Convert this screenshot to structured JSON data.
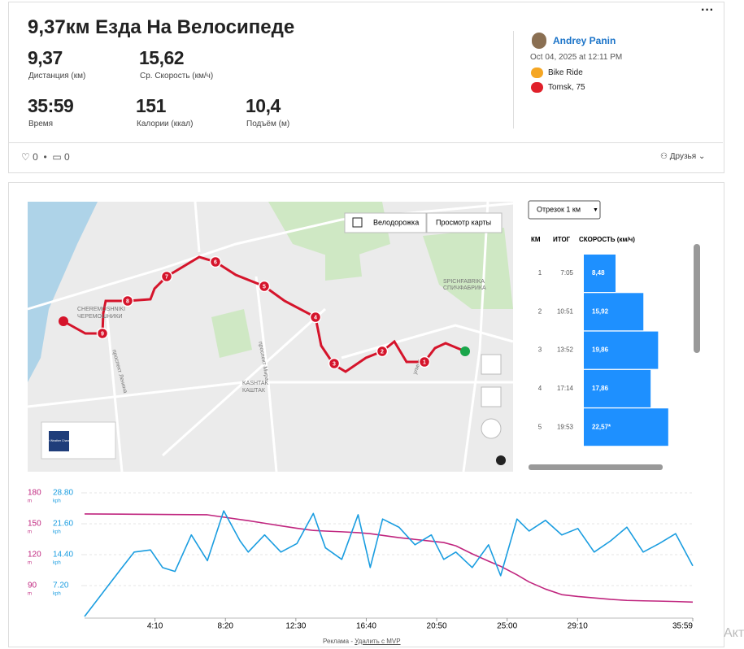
{
  "header": {
    "title": "9,37км Езда На Велосипеде",
    "stats": [
      {
        "value": "9,37",
        "label": "Дистанция (км)"
      },
      {
        "value": "15,62",
        "label": "Ср. Скорость (км/ч)"
      },
      {
        "value": "35:59",
        "label": "Время"
      },
      {
        "value": "151",
        "label": "Калории (ккал)"
      },
      {
        "value": "10,4",
        "label": "Подъём (м)"
      }
    ]
  },
  "athlete": {
    "name": "Andrey Panin",
    "date": "Oct 04, 2025 at 12:11 PM",
    "activity": "Bike Ride",
    "location": "Tomsk, 75"
  },
  "social": {
    "likes": "0",
    "comments": "0",
    "privacy": "Друзья"
  },
  "map": {
    "buttons": [
      "Велодорожка",
      "Просмотр карты"
    ],
    "labels": [
      "CHEREMOSHNIKI",
      "ЧЕРЕМОШНИКИ",
      "проспект Ленина",
      "проспект Мира",
      "KASHTAK",
      "КАШТАК",
      "SPICHFABRIKA",
      "СПИЧФАБРИКА",
      "улица"
    ],
    "km_markers": [
      "1",
      "2",
      "3",
      "4",
      "5",
      "6",
      "7",
      "8",
      "9"
    ],
    "weather": "The Weather Channel"
  },
  "splits": {
    "selector": "Отрезок 1 км",
    "columns": [
      "КМ",
      "ИТОГ",
      "СКОРОСТЬ (км/ч)"
    ],
    "km": [
      1,
      2,
      3,
      4,
      5
    ],
    "total": [
      "7:05",
      "10:51",
      "13:52",
      "17:14",
      "19:53"
    ],
    "speed": [
      8.48,
      15.92,
      19.86,
      17.86,
      22.57
    ],
    "speed_labels": [
      "8,48",
      "15,92",
      "19,86",
      "17,86",
      "22,57*"
    ]
  },
  "chart_data": {
    "type": "line",
    "x": [
      0,
      133,
      176,
      234,
      277,
      321,
      379,
      436,
      494,
      552,
      581,
      639,
      697,
      754,
      812,
      855,
      913,
      971,
      1014,
      1058,
      1116,
      1173,
      1231,
      1275,
      1318,
      1376,
      1434,
      1477,
      1535,
      1578,
      1636,
      1694,
      1751,
      1809,
      1867,
      1925,
      1983,
      2040,
      2098,
      2159
    ],
    "xlim": [
      0,
      2159
    ],
    "xticks": [
      {
        "value": 250,
        "label": "4:10"
      },
      {
        "value": 500,
        "label": "8:20"
      },
      {
        "value": 750,
        "label": "12:30"
      },
      {
        "value": 1000,
        "label": "16:40"
      },
      {
        "value": 1250,
        "label": "20:50"
      },
      {
        "value": 1500,
        "label": "25:00"
      },
      {
        "value": 1750,
        "label": "29:10"
      },
      {
        "value": 2159,
        "label": "35:59"
      }
    ],
    "ylim": [
      60,
      180
    ],
    "yticks": [
      90,
      120,
      150,
      180
    ],
    "y_unit": "m",
    "y2lim": [
      0,
      28.8
    ],
    "y2ticks": [
      {
        "value": 7.2,
        "label": "7.20"
      },
      {
        "value": 14.4,
        "label": "14.40"
      },
      {
        "value": 21.6,
        "label": "21.60"
      },
      {
        "value": 28.8,
        "label": "28.80"
      }
    ],
    "y2_unit": "kph",
    "grid": true,
    "series": [
      {
        "color": "#c0267f",
        "values": [
          159.5,
          159.3,
          159.2,
          159.1,
          159,
          158.9,
          158.8,
          158.7,
          156.4,
          154.1,
          153,
          150.5,
          148,
          145.6,
          143.5,
          142.9,
          142.2,
          141.4,
          140.4,
          138.7,
          136.5,
          134.8,
          133.1,
          131.8,
          128.6,
          120.8,
          113.7,
          108.7,
          100.4,
          93.5,
          86.6,
          81.2,
          79.4,
          78,
          76.6,
          75.6,
          75.2,
          74.9,
          74.5,
          74
        ]
      },
      {
        "color": "#1a9de0",
        "axis": "y2",
        "values": [
          0,
          11.4,
          15,
          15.5,
          11.4,
          10.5,
          19,
          13,
          24.6,
          17.6,
          15,
          19,
          15,
          17,
          24,
          16,
          13.3,
          23.7,
          11.4,
          22.7,
          20.8,
          16.7,
          19,
          13.3,
          15,
          11.4,
          16.7,
          9.5,
          22.7,
          19.9,
          22.4,
          19,
          20.5,
          15,
          17.6,
          20.8,
          15,
          17,
          19.3,
          11.8
        ]
      }
    ]
  },
  "footer": {
    "ad": "Реклама - ",
    "remove": "Удалить с MVP",
    "cut": "Акт"
  }
}
